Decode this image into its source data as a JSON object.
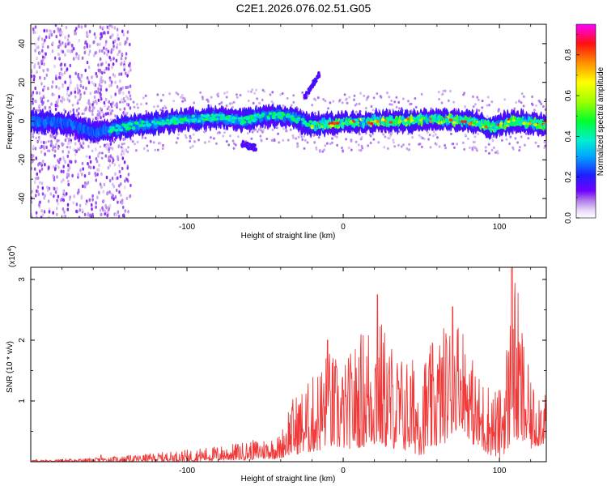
{
  "figure": {
    "title": "C2E1.2026.076.02.51.G05"
  },
  "chart_data": [
    {
      "type": "heatmap",
      "title": "C2E1.2026.076.02.51.G05",
      "xlabel": "Height of straight line (km)",
      "ylabel": "Frequency (Hz)",
      "xlim": [
        -200,
        130
      ],
      "ylim": [
        -50,
        50
      ],
      "x_ticks": [
        -100,
        0,
        100
      ],
      "x_tick_labels": [
        "-100",
        "0",
        "100"
      ],
      "y_ticks": [
        -40,
        -20,
        0,
        20,
        40
      ],
      "y_tick_labels": [
        "-40",
        "-20",
        "0",
        "20",
        "40"
      ],
      "colorbar": {
        "label": "Normalized spectral amplitude",
        "range": [
          0,
          0.95
        ],
        "ticks": [
          0.0,
          0.2,
          0.4,
          0.6,
          0.8
        ],
        "tick_labels": [
          "0.0",
          "0.2",
          "0.4",
          "0.6",
          "0.8"
        ],
        "colormap": [
          "#ffffff",
          "#c9a8ef",
          "#7a00ff",
          "#1e1eff",
          "#00c8ff",
          "#00ff80",
          "#a0ff00",
          "#ffff00",
          "#ff9000",
          "#ff0000",
          "#ff00ff"
        ]
      },
      "band_center_hz": [
        {
          "x": -200,
          "f": 0
        },
        {
          "x": -175,
          "f": -1
        },
        {
          "x": -160,
          "f": -6
        },
        {
          "x": -140,
          "f": -3
        },
        {
          "x": -120,
          "f": -1
        },
        {
          "x": -100,
          "f": 1
        },
        {
          "x": -80,
          "f": 2
        },
        {
          "x": -65,
          "f": 0
        },
        {
          "x": -55,
          "f": 2
        },
        {
          "x": -40,
          "f": 3
        },
        {
          "x": -30,
          "f": 1
        },
        {
          "x": -20,
          "f": -2
        },
        {
          "x": 0,
          "f": -1
        },
        {
          "x": 20,
          "f": 0
        },
        {
          "x": 40,
          "f": 0
        },
        {
          "x": 60,
          "f": 1
        },
        {
          "x": 80,
          "f": 0
        },
        {
          "x": 95,
          "f": -3
        },
        {
          "x": 110,
          "f": 0
        },
        {
          "x": 130,
          "f": -2
        }
      ],
      "peak_regions": [
        {
          "x_start": -150,
          "x_end": -30,
          "amplitude": 0.35
        },
        {
          "x_start": -20,
          "x_end": 130,
          "amplitude": 0.85
        }
      ],
      "noise_region_x": [
        -200,
        -140
      ],
      "side_features": [
        {
          "x_start": -65,
          "x_end": -55,
          "f_start": -12,
          "f_end": -14
        },
        {
          "x_start": -25,
          "x_end": -15,
          "f_start": 12,
          "f_end": 25
        }
      ]
    },
    {
      "type": "line",
      "xlabel": "Height of straight line (km)",
      "ylabel": "SNR (10 * v/v)",
      "y_multiplier": "(x10",
      "y_multiplier_exp": "4",
      "y_multiplier_close": ")",
      "color": "#f03a3a",
      "xlim": [
        -200,
        130
      ],
      "ylim": [
        0,
        3.2
      ],
      "x_ticks": [
        -100,
        0,
        100
      ],
      "x_tick_labels": [
        "-100",
        "0",
        "100"
      ],
      "y_ticks": [
        1,
        2,
        3
      ],
      "y_tick_labels": [
        "1",
        "2",
        "3"
      ],
      "envelope": [
        {
          "x": -200,
          "min": 0.0,
          "max": 0.03
        },
        {
          "x": -160,
          "min": 0.0,
          "max": 0.06
        },
        {
          "x": -130,
          "min": 0.0,
          "max": 0.12
        },
        {
          "x": -100,
          "min": 0.0,
          "max": 0.2
        },
        {
          "x": -70,
          "min": 0.02,
          "max": 0.3
        },
        {
          "x": -40,
          "min": 0.05,
          "max": 0.45
        },
        {
          "x": -35,
          "min": 0.1,
          "max": 1.0
        },
        {
          "x": -20,
          "min": 0.15,
          "max": 1.4
        },
        {
          "x": -10,
          "min": 0.2,
          "max": 1.9
        },
        {
          "x": 0,
          "min": 0.2,
          "max": 1.6
        },
        {
          "x": 20,
          "min": 0.25,
          "max": 2.6
        },
        {
          "x": 35,
          "min": 0.2,
          "max": 1.8
        },
        {
          "x": 50,
          "min": 0.1,
          "max": 1.7
        },
        {
          "x": 65,
          "min": 0.3,
          "max": 2.3
        },
        {
          "x": 75,
          "min": 0.6,
          "max": 2.5
        },
        {
          "x": 85,
          "min": 0.2,
          "max": 1.5
        },
        {
          "x": 100,
          "min": 0.05,
          "max": 1.2
        },
        {
          "x": 110,
          "min": 0.3,
          "max": 3.15
        },
        {
          "x": 120,
          "min": 0.2,
          "max": 1.3
        },
        {
          "x": 130,
          "min": 0.3,
          "max": 1.4
        }
      ],
      "peaks": [
        {
          "x": -155,
          "y": 0.11
        },
        {
          "x": -10,
          "y": 2.0
        },
        {
          "x": 22,
          "y": 2.75
        },
        {
          "x": 70,
          "y": 2.55
        },
        {
          "x": 108,
          "y": 3.2
        }
      ]
    }
  ]
}
